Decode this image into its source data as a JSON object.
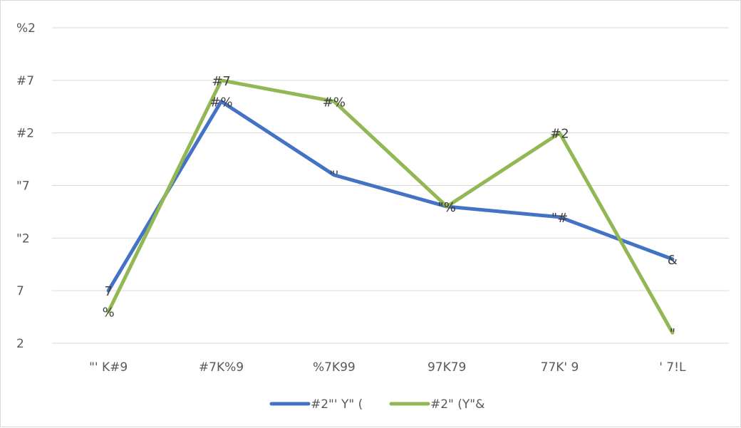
{
  "chart_data": {
    "type": "line",
    "categories": [
      "\"' K#9",
      "#7K%9",
      "%7K99",
      "97K79",
      "77K' 9",
      "' 7!L"
    ],
    "y_tick_labels": [
      "2",
      "7",
      "\"2",
      "\"7",
      "#2",
      "#7",
      "%2"
    ],
    "ylim": [
      0,
      30
    ],
    "grid": true,
    "legend_position": "bottom",
    "series": [
      {
        "name": "#2\"' Y\" (",
        "color": "#4472c4",
        "values": [
          5,
          23,
          16,
          13,
          12,
          8
        ],
        "labels": [
          "7",
          "#%",
          "\"'",
          "\"%",
          "\"#",
          "&"
        ]
      },
      {
        "name": "#2\" (Y\"&",
        "color": "#92b755",
        "values": [
          3,
          25,
          23,
          13,
          20,
          1
        ],
        "labels": [
          "%",
          "#7",
          "#%",
          "\"%",
          "#2",
          "\""
        ]
      }
    ]
  }
}
